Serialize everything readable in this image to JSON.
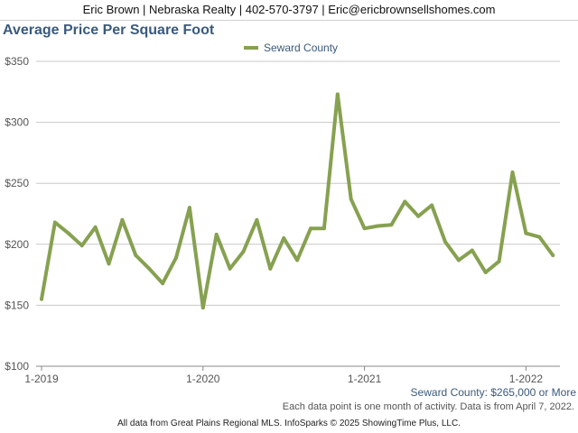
{
  "header": {
    "contact": "Eric Brown | Nebraska Realty | 402-570-3797 | Eric@ericbrownsellshomes.com"
  },
  "chart_data": {
    "type": "line",
    "title": "Average Price Per Square Foot",
    "xlabel": "",
    "ylabel": "",
    "ylim": [
      100,
      350
    ],
    "y_ticks": [
      "$100",
      "$150",
      "$200",
      "$250",
      "$300",
      "$350"
    ],
    "x_ticks": [
      "1-2019",
      "1-2020",
      "1-2021",
      "1-2022"
    ],
    "grid": true,
    "legend_placement": "top-center",
    "series": [
      {
        "name": "Seward County",
        "color": "#86a150",
        "x": [
          "2019-01",
          "2019-02",
          "2019-03",
          "2019-04",
          "2019-05",
          "2019-06",
          "2019-07",
          "2019-08",
          "2019-09",
          "2019-10",
          "2019-11",
          "2019-12",
          "2020-01",
          "2020-02",
          "2020-03",
          "2020-04",
          "2020-05",
          "2020-06",
          "2020-07",
          "2020-08",
          "2020-09",
          "2020-10",
          "2020-11",
          "2020-12",
          "2021-01",
          "2021-02",
          "2021-03",
          "2021-04",
          "2021-05",
          "2021-06",
          "2021-07",
          "2021-08",
          "2021-09",
          "2021-10",
          "2021-11",
          "2021-12",
          "2022-01",
          "2022-02",
          "2022-03"
        ],
        "values": [
          155,
          218,
          209,
          199,
          214,
          184,
          220,
          191,
          180,
          168,
          189,
          230,
          148,
          208,
          180,
          194,
          220,
          180,
          205,
          187,
          213,
          213,
          323,
          237,
          213,
          215,
          216,
          235,
          223,
          232,
          202,
          187,
          195,
          177,
          186,
          259,
          209,
          206,
          191
        ]
      }
    ]
  },
  "notes": {
    "segment": "Seward County: $265,000 or More",
    "activity": "Each data point is one month of activity. Data is from April 7, 2022.",
    "source": "All data from Great Plains Regional MLS. InfoSparks © 2025 ShowingTime Plus, LLC."
  }
}
